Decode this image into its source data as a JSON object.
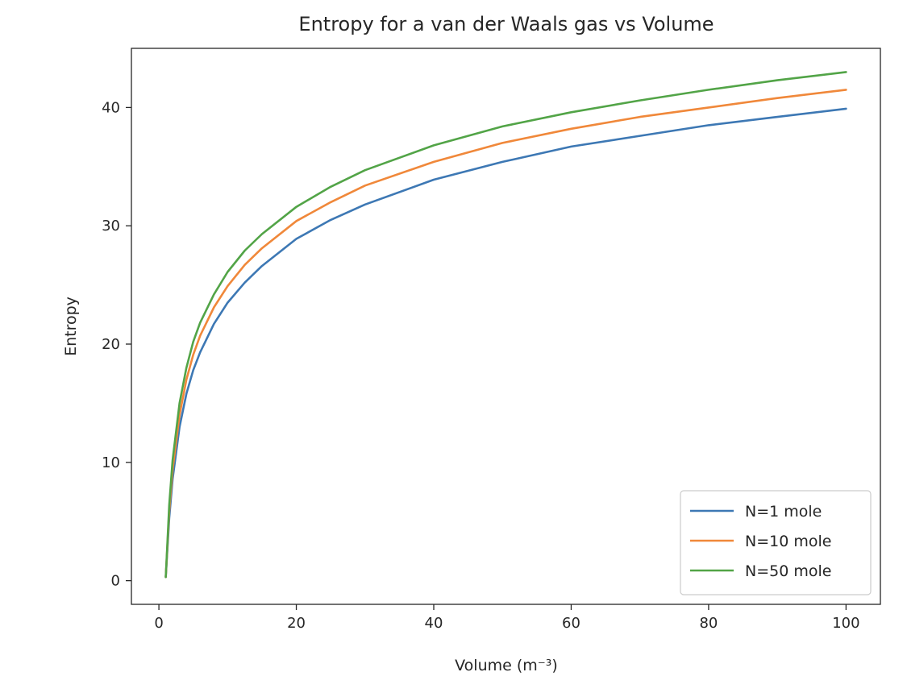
{
  "chart_data": {
    "type": "line",
    "title": "Entropy for a van der Waals gas vs Volume",
    "xlabel": "Volume (m⁻³)",
    "ylabel": "Entropy",
    "xlim": [
      -4,
      105
    ],
    "ylim": [
      -2,
      45
    ],
    "xticks": [
      0,
      20,
      40,
      60,
      80,
      100
    ],
    "yticks": [
      0,
      10,
      20,
      30,
      40
    ],
    "grid": false,
    "legend_position": "lower-right",
    "series": [
      {
        "name": "N=1 mole",
        "color": "#3d78b4",
        "x": [
          1,
          1.5,
          2,
          3,
          4,
          5,
          6,
          8,
          10,
          12.5,
          15,
          20,
          25,
          30,
          40,
          50,
          60,
          70,
          80,
          90,
          100
        ],
        "y": [
          0.3,
          5.3,
          8.6,
          13.0,
          15.8,
          17.8,
          19.3,
          21.7,
          23.5,
          25.2,
          26.6,
          28.9,
          30.5,
          31.8,
          33.9,
          35.4,
          36.7,
          37.6,
          38.5,
          39.2,
          39.9
        ]
      },
      {
        "name": "N=10 mole",
        "color": "#f0883a",
        "x": [
          1,
          1.5,
          2,
          3,
          4,
          5,
          6,
          8,
          10,
          12.5,
          15,
          20,
          25,
          30,
          40,
          50,
          60,
          70,
          80,
          90,
          100
        ],
        "y": [
          0.3,
          5.9,
          9.4,
          14.0,
          17.0,
          19.1,
          20.7,
          23.1,
          24.9,
          26.7,
          28.1,
          30.4,
          32.0,
          33.4,
          35.4,
          37.0,
          38.2,
          39.2,
          40.0,
          40.8,
          41.5
        ]
      },
      {
        "name": "N=50 mole",
        "color": "#52a447",
        "x": [
          1,
          1.5,
          2,
          3,
          4,
          5,
          6,
          8,
          10,
          12.5,
          15,
          20,
          25,
          30,
          40,
          50,
          60,
          70,
          80,
          90,
          100
        ],
        "y": [
          0.3,
          6.4,
          10.2,
          15.0,
          18.0,
          20.2,
          21.8,
          24.2,
          26.1,
          27.9,
          29.3,
          31.6,
          33.3,
          34.7,
          36.8,
          38.4,
          39.6,
          40.6,
          41.5,
          42.3,
          43.0
        ]
      }
    ]
  }
}
